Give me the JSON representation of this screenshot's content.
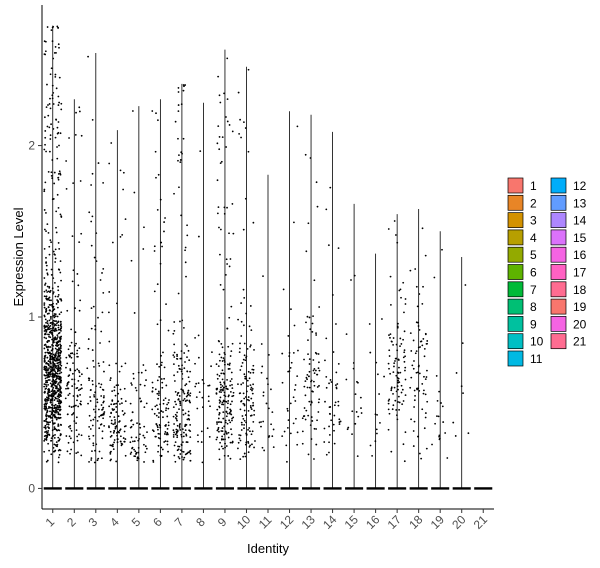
{
  "chart_data": {
    "type": "violin-jitter",
    "xlabel": "Identity",
    "ylabel": "Expression Level",
    "ylim": [
      -0.12,
      2.82
    ],
    "yticks": [
      0,
      1,
      2
    ],
    "grid": false,
    "legend_position": "right",
    "categories": [
      "1",
      "2",
      "3",
      "4",
      "5",
      "6",
      "7",
      "8",
      "9",
      "10",
      "11",
      "12",
      "13",
      "14",
      "15",
      "16",
      "17",
      "18",
      "19",
      "20",
      "21"
    ],
    "colors": [
      "#F8766D",
      "#E88526",
      "#D39200",
      "#B79F00",
      "#93AA00",
      "#5EB300",
      "#00BA38",
      "#00BF74",
      "#00C19F",
      "#00BFC4",
      "#00B9E3",
      "#00ADFA",
      "#619CFF",
      "#AE87FF",
      "#DB72FB",
      "#F564E3",
      "#FF61C3",
      "#FF6C91",
      "#F8766D",
      "#F564E3",
      "#FF6C91"
    ],
    "max_expression": [
      2.7,
      2.27,
      2.54,
      2.09,
      2.23,
      2.27,
      2.36,
      2.25,
      2.56,
      2.46,
      1.83,
      2.2,
      2.18,
      2.08,
      1.66,
      1.37,
      1.6,
      1.63,
      1.5,
      1.35,
      0.0
    ],
    "cluster_center": [
      0.68,
      0.55,
      0.5,
      0.35,
      0.32,
      0.4,
      0.45,
      0.5,
      0.5,
      0.5,
      0.45,
      0.55,
      0.6,
      0.5,
      0.5,
      0.5,
      0.7,
      0.65,
      0.3,
      0.5,
      0
    ],
    "expressing_cell_counts": [
      900,
      120,
      110,
      110,
      70,
      110,
      190,
      30,
      200,
      130,
      25,
      35,
      80,
      45,
      20,
      15,
      95,
      70,
      18,
      8,
      0
    ],
    "baseline_value": 0
  }
}
